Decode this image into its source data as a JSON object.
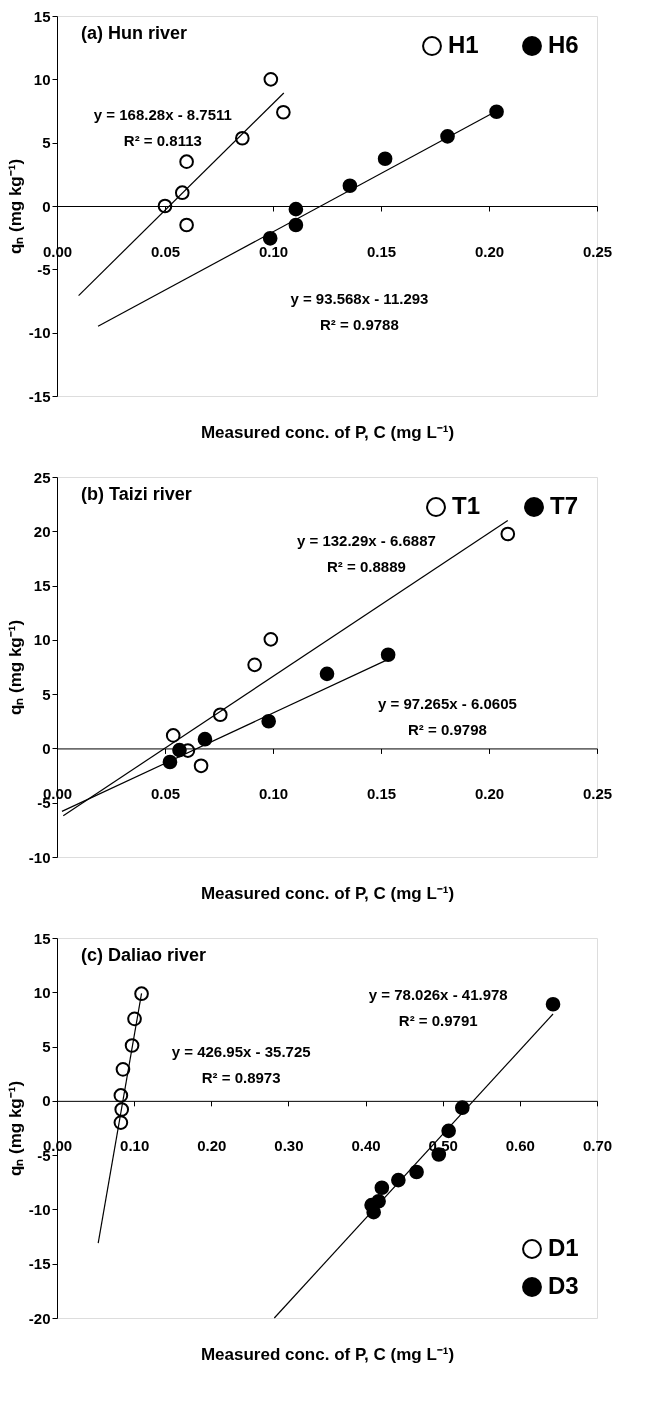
{
  "chart_data": [
    {
      "type": "scatter",
      "title": "(a) Hun river",
      "xlabel": "Measured conc. of P, C (mg L⁻¹)",
      "ylabel": "qₙ (mg kg⁻¹)",
      "legend": "top right",
      "marker": "circle",
      "grid": false,
      "xlim": [
        0,
        0.25
      ],
      "ylim": [
        -15,
        15
      ],
      "xticks": [
        {
          "value": 0,
          "label": "0.00"
        },
        {
          "value": 0.05,
          "label": "0.05"
        },
        {
          "value": 0.1,
          "label": "0.10"
        },
        {
          "value": 0.15,
          "label": "0.15"
        },
        {
          "value": 0.2,
          "label": "0.20"
        },
        {
          "value": 0.25,
          "label": "0.25"
        }
      ],
      "yticks": [
        -15,
        -10,
        -5,
        0,
        5,
        10,
        15
      ],
      "series": [
        {
          "name": "H1",
          "color": "#ffffff",
          "x": [
            0.05,
            0.058,
            0.06,
            0.06,
            0.0858,
            0.099,
            0.1048
          ],
          "values": [
            0,
            1.05,
            3.5,
            -1.5,
            5.35,
            10.0,
            7.4
          ]
        },
        {
          "name": "H6",
          "color": "#000000",
          "x": [
            0.0987,
            0.1106,
            0.1106,
            0.1356,
            0.1519,
            0.1808,
            0.2035
          ],
          "values": [
            -2.55,
            -0.25,
            -1.5,
            1.6,
            3.73,
            5.5,
            7.44
          ]
        },
        {
          "type": "line",
          "marker": "none",
          "line_style": "solid",
          "color": "#000000",
          "x": [
            0.01,
            0.105
          ],
          "values": [
            -7.07,
            8.92
          ]
        },
        {
          "type": "line",
          "marker": "none",
          "line_style": "solid",
          "color": "#000000",
          "x": [
            0.019,
            0.2035
          ],
          "values": [
            -9.5,
            7.5
          ]
        }
      ],
      "annotations": [
        "y = 168.28x - 8.7511\nR² = 0.8113",
        "y = 93.568x - 11.293\nR² = 0.9788"
      ]
    },
    {
      "type": "scatter",
      "title": "(b) Taizi river",
      "xlabel": "Measured conc. of P, C (mg L⁻¹)",
      "ylabel": "qₙ (mg kg⁻¹)",
      "legend": "top right",
      "marker": "circle",
      "grid": false,
      "xlim": [
        0,
        0.25
      ],
      "ylim": [
        -10,
        25
      ],
      "xticks": [
        {
          "value": 0,
          "label": "0.00"
        },
        {
          "value": 0.05,
          "label": "0.05"
        },
        {
          "value": 0.1,
          "label": "0.10"
        },
        {
          "value": 0.15,
          "label": "0.15"
        },
        {
          "value": 0.2,
          "label": "0.20"
        },
        {
          "value": 0.25,
          "label": "0.25"
        }
      ],
      "yticks": [
        -10,
        -5,
        0,
        5,
        10,
        15,
        20,
        25
      ],
      "series": [
        {
          "name": "T1",
          "color": "#ffffff",
          "x": [
            0.0538,
            0.0606,
            0.0667,
            0.0756,
            0.0915,
            0.099,
            0.2087
          ],
          "values": [
            1.2,
            -0.2,
            -1.6,
            3.1,
            7.7,
            10.05,
            19.75
          ]
        },
        {
          "name": "T7",
          "color": "#000000",
          "x": [
            0.0523,
            0.0567,
            0.0685,
            0.098,
            0.125,
            0.1533
          ],
          "values": [
            -1.25,
            -0.15,
            0.85,
            2.5,
            6.87,
            8.63
          ]
        },
        {
          "type": "line",
          "marker": "none",
          "line_style": "solid",
          "color": "#000000",
          "x": [
            0.0029,
            0.2087
          ],
          "values": [
            -6.2,
            21.0
          ]
        },
        {
          "type": "line",
          "marker": "none",
          "line_style": "solid",
          "color": "#000000",
          "x": [
            0.0023,
            0.1533
          ],
          "values": [
            -5.8,
            8.2
          ]
        }
      ],
      "annotations": [
        "y = 132.29x - 6.6887\nR² = 0.8889",
        "y = 97.265x - 6.0605\nR² = 0.9798"
      ]
    },
    {
      "type": "scatter",
      "title": "(c) Daliao river",
      "xlabel": "Measured conc. of P, C (mg L⁻¹)",
      "ylabel": "qₙ (mg kg⁻¹)",
      "legend": "bottom right",
      "marker": "circle",
      "grid": false,
      "xlim": [
        0,
        0.7
      ],
      "ylim": [
        -20,
        15
      ],
      "xticks": [
        {
          "value": 0,
          "label": "0.00"
        },
        {
          "value": 0.1,
          "label": "0.10"
        },
        {
          "value": 0.2,
          "label": "0.20"
        },
        {
          "value": 0.3,
          "label": "0.30"
        },
        {
          "value": 0.4,
          "label": "0.40"
        },
        {
          "value": 0.5,
          "label": "0.50"
        },
        {
          "value": 0.6,
          "label": "0.60"
        },
        {
          "value": 0.7,
          "label": "0.70"
        }
      ],
      "yticks": [
        -20,
        -15,
        -10,
        -5,
        0,
        5,
        10,
        15
      ],
      "series": [
        {
          "name": "D1",
          "color": "#ffffff",
          "x": [
            0.0828,
            0.0839,
            0.0828,
            0.0855,
            0.0973,
            0.1005,
            0.1096
          ],
          "values": [
            -2.0,
            -0.8,
            0.5,
            2.9,
            5.1,
            7.55,
            9.87
          ]
        },
        {
          "name": "D3",
          "color": "#000000",
          "x": [
            0.4078,
            0.4105,
            0.4169,
            0.4211,
            0.4425,
            0.4661,
            0.4949,
            0.5077,
            0.5254,
            0.643
          ],
          "values": [
            -9.6,
            -10.25,
            -9.25,
            -8.0,
            -7.3,
            -6.55,
            -4.94,
            -2.76,
            -0.63,
            8.9
          ]
        },
        {
          "type": "line",
          "marker": "none",
          "line_style": "solid",
          "color": "#000000",
          "x": [
            0.0534,
            0.1096
          ],
          "values": [
            -13.1,
            9.9
          ]
        },
        {
          "type": "line",
          "marker": "none",
          "line_style": "solid",
          "color": "#000000",
          "x": [
            0.2817,
            0.643
          ],
          "values": [
            -20,
            8.0
          ]
        }
      ],
      "annotations": [
        "y = 78.026x - 41.978\nR² = 0.9791",
        "y = 426.95x - 35.725\nR² = 0.8973"
      ]
    }
  ]
}
